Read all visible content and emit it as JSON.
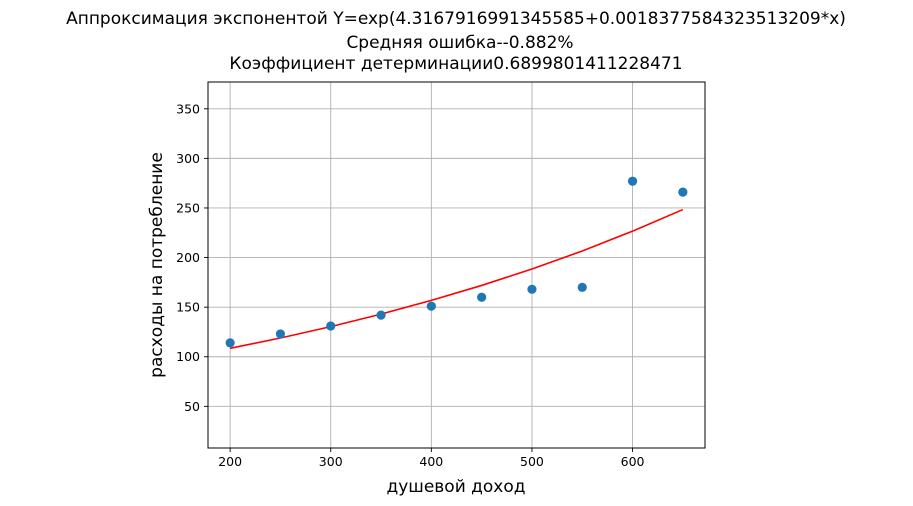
{
  "chart_data": {
    "type": "scatter",
    "title_lines": [
      "Аппроксимация экспонентой Y=exp(4.3167916991345585+0.0018377584323513209*x)",
      "Средняя ошибка--0.882%",
      "Коэффициент детерминации0.6899801411228471"
    ],
    "xlabel": "душевой доход",
    "ylabel": "расходы на потребление",
    "xlim": [
      178,
      672
    ],
    "ylim": [
      8,
      377
    ],
    "xticks": [
      200,
      300,
      400,
      500,
      600
    ],
    "yticks": [
      50,
      100,
      150,
      200,
      250,
      300,
      350
    ],
    "grid": true,
    "series": [
      {
        "kind": "points",
        "color": "#1f77b4",
        "x": [
          200,
          250,
          300,
          350,
          400,
          450,
          500,
          550,
          600,
          650
        ],
        "y": [
          114,
          123,
          131,
          142,
          151,
          160,
          168,
          170,
          277,
          266
        ]
      },
      {
        "kind": "line",
        "color": "#ff0000",
        "x": [
          200,
          250,
          300,
          350,
          400,
          450,
          500,
          550,
          600,
          650
        ],
        "y": [
          108.5,
          118.9,
          130.4,
          143.0,
          156.8,
          171.9,
          188.5,
          206.6,
          226.6,
          248.4
        ]
      }
    ]
  }
}
